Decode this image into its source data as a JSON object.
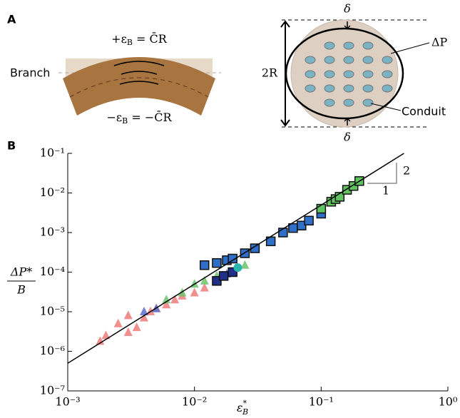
{
  "panel_a": {
    "label": "A",
    "eq_top": {
      "pre": "+ε",
      "sub": "B",
      "post": " = C̄R"
    },
    "eq_bottom": {
      "pre": "−ε",
      "sub": "B",
      "post": " = −C̄R"
    },
    "branch": "Branch",
    "delta_top": "δ",
    "delta_bottom": "δ",
    "pressure": "ΔP",
    "diameter": "2R",
    "conduit": "Conduit"
  },
  "chart_data": {
    "type": "scatter",
    "panel_label": "B",
    "ylabel": {
      "numerator": "ΔP*",
      "denominator": "B"
    },
    "xlabel": {
      "base": "ε",
      "sup": "*",
      "sub": "B"
    },
    "log_x": true,
    "log_y": true,
    "xlim": [
      0.001,
      1
    ],
    "ylim": [
      1e-07,
      0.1
    ],
    "xticks": [
      {
        "value": 0.001,
        "label": "10⁻³"
      },
      {
        "value": 0.01,
        "label": "10⁻²"
      },
      {
        "value": 0.1,
        "label": "10⁻¹"
      },
      {
        "value": 1,
        "label": "10⁰"
      }
    ],
    "yticks": [
      {
        "value": 1e-07,
        "label": "10⁻⁷"
      },
      {
        "value": 1e-06,
        "label": "10⁻⁶"
      },
      {
        "value": 1e-05,
        "label": "10⁻⁵"
      },
      {
        "value": 0.0001,
        "label": "10⁻⁴"
      },
      {
        "value": 0.001,
        "label": "10⁻³"
      },
      {
        "value": 0.01,
        "label": "10⁻²"
      },
      {
        "value": 0.1,
        "label": "10⁻¹"
      }
    ],
    "series": [
      {
        "marker": "triangle",
        "color": "#ef7b7b",
        "x": [
          0.0018,
          0.002,
          0.0025,
          0.003,
          0.003,
          0.0035,
          0.004,
          0.0045,
          0.005,
          0.006,
          0.007,
          0.008,
          0.01,
          0.012
        ],
        "values": [
          1.8e-06,
          2.5e-06,
          5e-06,
          3e-06,
          8e-06,
          4e-06,
          7e-06,
          1e-05,
          1.2e-05,
          1.5e-05,
          2e-05,
          2.5e-05,
          3e-05,
          4e-05
        ]
      },
      {
        "marker": "triangle",
        "color": "#6cc36c",
        "x": [
          0.006,
          0.008,
          0.01,
          0.012,
          0.015,
          0.02,
          0.025
        ],
        "values": [
          2e-05,
          3e-05,
          5e-05,
          6e-05,
          8e-05,
          0.0001,
          0.00015
        ]
      },
      {
        "marker": "triangle",
        "color": "#5a6fd0",
        "x": [
          0.004,
          0.005,
          0.015,
          0.018,
          0.02
        ],
        "values": [
          1e-05,
          1.2e-05,
          6e-05,
          9e-05,
          0.0001
        ]
      },
      {
        "marker": "square",
        "color": "#1f2f8a",
        "x": [
          0.015,
          0.017,
          0.02
        ],
        "values": [
          6e-05,
          8e-05,
          0.0001
        ]
      },
      {
        "marker": "square",
        "color": "#2f6fc8",
        "x": [
          0.012,
          0.015,
          0.018,
          0.02,
          0.025,
          0.03,
          0.04,
          0.05,
          0.06,
          0.07,
          0.08,
          0.1
        ],
        "values": [
          0.00015,
          0.00017,
          0.0002,
          0.00022,
          0.0003,
          0.0004,
          0.0006,
          0.001,
          0.0013,
          0.0015,
          0.002,
          0.003
        ]
      },
      {
        "marker": "square",
        "color": "#5fc45f",
        "x": [
          0.1,
          0.12,
          0.13,
          0.14,
          0.16,
          0.18,
          0.2
        ],
        "values": [
          0.004,
          0.006,
          0.007,
          0.008,
          0.012,
          0.015,
          0.02
        ]
      },
      {
        "marker": "circle",
        "color": "#2bb5b0",
        "x": [
          0.022
        ],
        "values": [
          0.00013
        ]
      }
    ],
    "fit": {
      "color": "#000000",
      "x": [
        0.001,
        0.45
      ],
      "values": [
        5e-07,
        0.1
      ]
    },
    "slope_rise": "2",
    "slope_run": "1"
  }
}
